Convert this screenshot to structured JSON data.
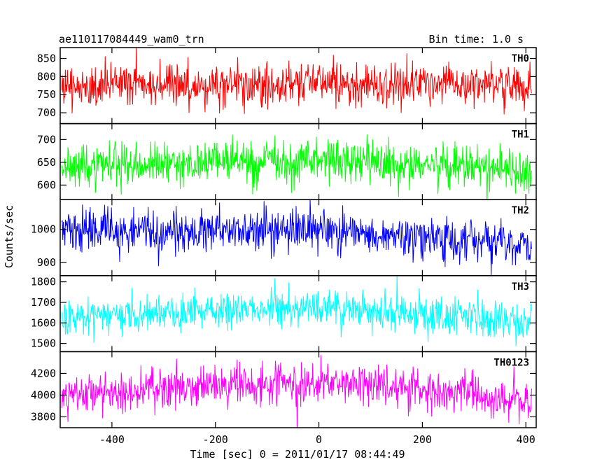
{
  "header": {
    "left": "ae110117084449_wam0_trn",
    "right": "Bin time: 1.0 s"
  },
  "ylabel": "Counts/sec",
  "xlabel": "Time [sec] 0 = 2011/01/17 08:44:49",
  "chart_data": {
    "type": "line",
    "title": "ae110117084449_wam0_trn",
    "subtitle": "Bin time: 1.0 s",
    "xlabel": "Time [sec] 0 = 2011/01/17 08:44:49",
    "ylabel": "Counts/sec",
    "xlim": [
      -500,
      420
    ],
    "xticks": [
      -400,
      -200,
      0,
      200,
      400
    ],
    "x_start": -497,
    "x_end": 411,
    "x_step": 1,
    "panels": [
      {
        "name": "TH0",
        "color": "#ff0000",
        "ylim": [
          670,
          880
        ],
        "yticks": [
          700,
          750,
          800,
          850
        ],
        "mean_trend": [
          [
            -500,
            768
          ],
          [
            -350,
            778
          ],
          [
            -200,
            775
          ],
          [
            0,
            782
          ],
          [
            150,
            780
          ],
          [
            300,
            775
          ],
          [
            411,
            770
          ]
        ],
        "noise_sd": 30
      },
      {
        "name": "TH1",
        "color": "#00ff00",
        "ylim": [
          568,
          735
        ],
        "yticks": [
          600,
          650,
          700
        ],
        "mean_trend": [
          [
            -500,
            638
          ],
          [
            -200,
            650
          ],
          [
            0,
            655
          ],
          [
            150,
            650
          ],
          [
            300,
            640
          ],
          [
            411,
            630
          ]
        ],
        "noise_sd": 24
      },
      {
        "name": "TH2",
        "color": "#0000ff",
        "ylim": [
          860,
          1090
        ],
        "yticks": [
          900,
          1000
        ],
        "mean_trend": [
          [
            -500,
            995
          ],
          [
            -200,
            995
          ],
          [
            0,
            1000
          ],
          [
            150,
            985
          ],
          [
            300,
            965
          ],
          [
            411,
            950
          ]
        ],
        "noise_sd": 32
      },
      {
        "name": "TH3",
        "color": "#00ffff",
        "ylim": [
          1460,
          1830
        ],
        "yticks": [
          1500,
          1600,
          1700,
          1800
        ],
        "mean_trend": [
          [
            -500,
            1630
          ],
          [
            -300,
            1650
          ],
          [
            -100,
            1670
          ],
          [
            0,
            1675
          ],
          [
            100,
            1655
          ],
          [
            250,
            1635
          ],
          [
            411,
            1605
          ]
        ],
        "noise_sd": 45
      },
      {
        "name": "TH0123",
        "color": "#ff00ff",
        "ylim": [
          3700,
          4400
        ],
        "yticks": [
          3800,
          4000,
          4200
        ],
        "mean_trend": [
          [
            -500,
            3990
          ],
          [
            -300,
            4060
          ],
          [
            -100,
            4110
          ],
          [
            0,
            4120
          ],
          [
            150,
            4090
          ],
          [
            300,
            4000
          ],
          [
            411,
            3920
          ]
        ],
        "noise_sd": 95
      }
    ]
  }
}
